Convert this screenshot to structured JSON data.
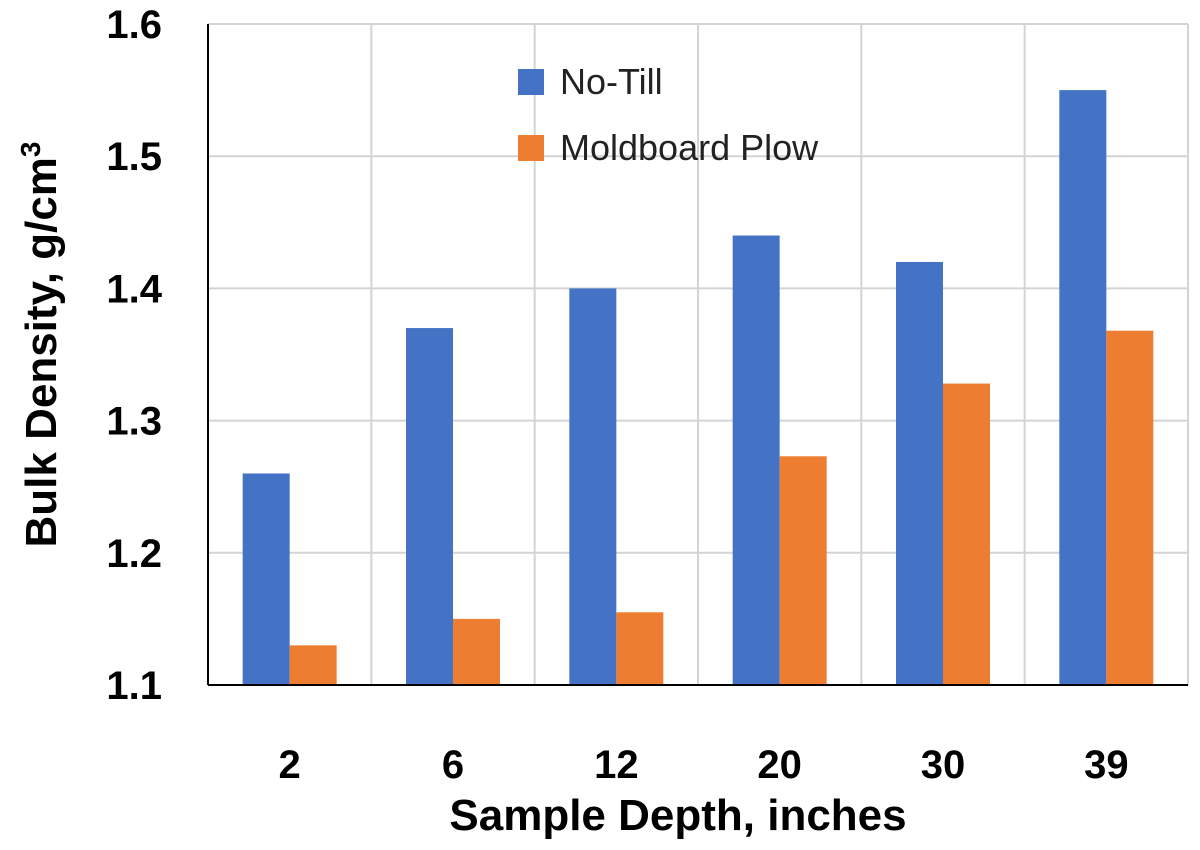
{
  "chart_data": {
    "type": "bar",
    "title": "",
    "xlabel": "Sample Depth, inches",
    "ylabel": "Bulk Density, g/cm",
    "ylabel_superscript": "3",
    "categories": [
      "2",
      "6",
      "12",
      "20",
      "30",
      "39"
    ],
    "series": [
      {
        "name": "No-Till",
        "color": "#4472C4",
        "values": [
          1.26,
          1.37,
          1.4,
          1.44,
          1.42,
          1.55
        ]
      },
      {
        "name": "Moldboard Plow",
        "color": "#ED7D31",
        "values": [
          1.13,
          1.15,
          1.155,
          1.273,
          1.328,
          1.368
        ]
      }
    ],
    "ylim": [
      1.1,
      1.6
    ],
    "yticks": [
      "1.1",
      "1.2",
      "1.3",
      "1.4",
      "1.5",
      "1.6"
    ],
    "grid": true,
    "legend_position": "top-center"
  }
}
